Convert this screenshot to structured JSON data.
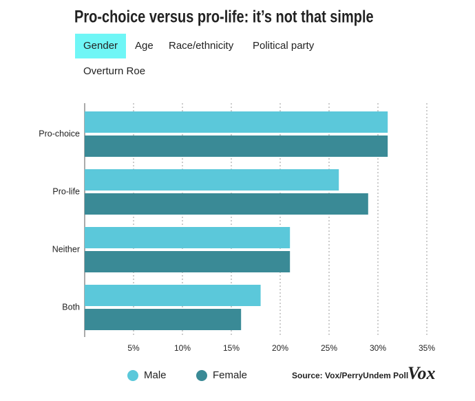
{
  "title": "Pro-choice versus pro-life: it’s not that simple",
  "tabs": [
    "Gender",
    "Age",
    "Race/ethnicity",
    "Political party",
    "Overturn Roe"
  ],
  "active_tab": 0,
  "chart_data": {
    "type": "bar",
    "orientation": "horizontal",
    "categories": [
      "Pro-choice",
      "Pro-life",
      "Neither",
      "Both"
    ],
    "series": [
      {
        "name": "Male",
        "color": "#5bc8da",
        "values": [
          31,
          26,
          21,
          18
        ]
      },
      {
        "name": "Female",
        "color": "#3a8a96",
        "values": [
          31,
          29,
          21,
          16
        ]
      }
    ],
    "xlim": [
      0,
      35
    ],
    "xticks": [
      {
        "value": 5,
        "label": "5%"
      },
      {
        "value": 10,
        "label": "10%"
      },
      {
        "value": 15,
        "label": "15%"
      },
      {
        "value": 20,
        "label": "20%"
      },
      {
        "value": 25,
        "label": "25%"
      },
      {
        "value": 30,
        "label": "30%"
      },
      {
        "value": 35,
        "label": "35%"
      }
    ],
    "grid": true
  },
  "source": "Source: Vox/PerryUndem Poll",
  "logo": "Vox"
}
